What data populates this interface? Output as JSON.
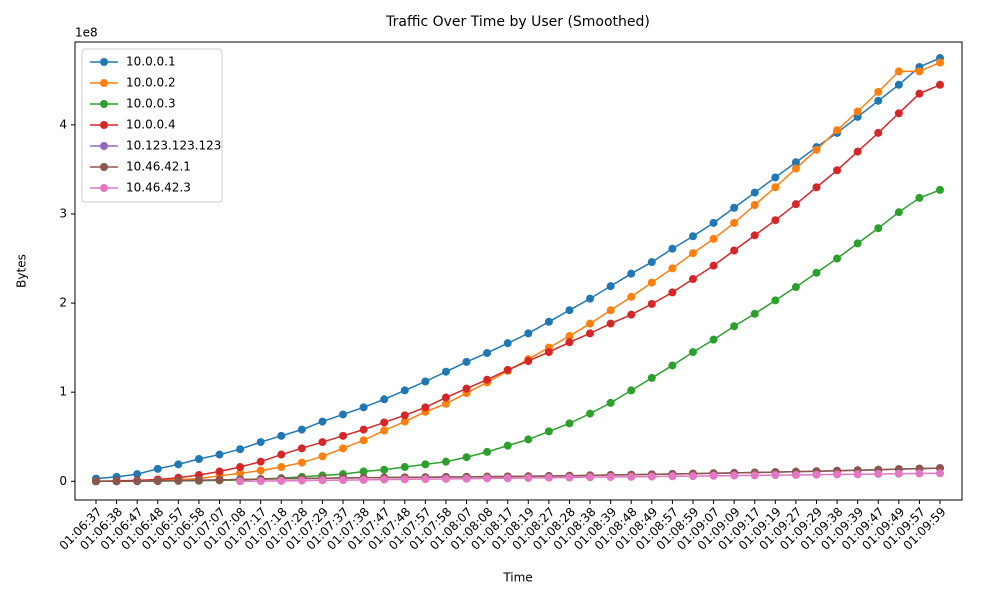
{
  "chart_data": {
    "type": "line",
    "title": "Traffic Over Time by User (Smoothed)",
    "x_label": "Time",
    "y_label": "Bytes",
    "y_offset_label": "1e8",
    "categories": [
      "01:06:37",
      "01:06:38",
      "01:06:47",
      "01:06:48",
      "01:06:57",
      "01:06:58",
      "01:07:07",
      "01:07:08",
      "01:07:17",
      "01:07:18",
      "01:07:28",
      "01:07:29",
      "01:07:37",
      "01:07:38",
      "01:07:47",
      "01:07:48",
      "01:07:57",
      "01:07:58",
      "01:08:07",
      "01:08:08",
      "01:08:17",
      "01:08:19",
      "01:08:27",
      "01:08:28",
      "01:08:38",
      "01:08:39",
      "01:08:48",
      "01:08:49",
      "01:08:57",
      "01:08:59",
      "01:09:07",
      "01:09:09",
      "01:09:17",
      "01:09:19",
      "01:09:27",
      "01:09:29",
      "01:09:38",
      "01:09:39",
      "01:09:47",
      "01:09:49",
      "01:09:57",
      "01:09:59"
    ],
    "ylim": [
      -0.21,
      4.93
    ],
    "yticks": [
      0,
      1,
      2,
      3,
      4
    ],
    "grid": false,
    "legend": "upper left",
    "series": [
      {
        "name": "10.0.0.1",
        "color": "#1f77b4",
        "values": [
          0.03,
          0.05,
          0.08,
          0.14,
          0.19,
          0.25,
          0.3,
          0.36,
          0.44,
          0.51,
          0.58,
          0.67,
          0.75,
          0.83,
          0.92,
          1.02,
          1.12,
          1.23,
          1.34,
          1.44,
          1.55,
          1.66,
          1.79,
          1.92,
          2.05,
          2.19,
          2.33,
          2.46,
          2.61,
          2.75,
          2.9,
          3.07,
          3.24,
          3.41,
          3.58,
          3.75,
          3.91,
          4.09,
          4.27,
          4.45,
          4.65,
          4.75
        ]
      },
      {
        "name": "10.0.0.2",
        "color": "#ff7f0e",
        "values": [
          0,
          0.001,
          0.005,
          0.01,
          0.02,
          0.03,
          0.06,
          0.09,
          0.12,
          0.16,
          0.21,
          0.28,
          0.37,
          0.46,
          0.57,
          0.67,
          0.78,
          0.87,
          0.99,
          1.11,
          1.24,
          1.37,
          1.5,
          1.63,
          1.77,
          1.92,
          2.07,
          2.23,
          2.39,
          2.56,
          2.72,
          2.9,
          3.1,
          3.3,
          3.51,
          3.72,
          3.94,
          4.15,
          4.37,
          4.6,
          4.6,
          4.7
        ]
      },
      {
        "name": "10.0.0.3",
        "color": "#2ca02c",
        "values": [
          0,
          0,
          0.001,
          0.002,
          0.004,
          0.006,
          0.01,
          0.015,
          0.025,
          0.035,
          0.05,
          0.065,
          0.08,
          0.11,
          0.13,
          0.16,
          0.19,
          0.22,
          0.27,
          0.33,
          0.4,
          0.47,
          0.56,
          0.65,
          0.76,
          0.88,
          1.02,
          1.16,
          1.3,
          1.45,
          1.59,
          1.74,
          1.88,
          2.03,
          2.18,
          2.34,
          2.5,
          2.67,
          2.84,
          3.02,
          3.18,
          3.27
        ]
      },
      {
        "name": "10.0.0.4",
        "color": "#d62728",
        "values": [
          0.002,
          0.005,
          0.01,
          0.02,
          0.04,
          0.07,
          0.11,
          0.16,
          0.22,
          0.3,
          0.37,
          0.44,
          0.51,
          0.58,
          0.66,
          0.74,
          0.83,
          0.94,
          1.04,
          1.14,
          1.25,
          1.35,
          1.45,
          1.56,
          1.66,
          1.77,
          1.87,
          1.99,
          2.12,
          2.27,
          2.42,
          2.59,
          2.76,
          2.93,
          3.11,
          3.3,
          3.49,
          3.7,
          3.91,
          4.13,
          4.35,
          4.45
        ]
      },
      {
        "name": "10.123.123.123",
        "color": "#9467bd",
        "values": [
          0,
          0,
          0.002,
          0.004,
          0.008,
          0.012,
          0.016,
          0.02,
          0.024,
          0.028,
          0.031,
          0.034,
          0.037,
          0.04,
          0.042,
          0.044,
          0.046,
          0.048,
          0.05,
          0.052,
          0.054,
          0.056,
          0.059,
          0.062,
          0.066,
          0.07,
          0.074,
          0.078,
          0.082,
          0.086,
          0.09,
          0.094,
          0.098,
          0.103,
          0.108,
          0.113,
          0.118,
          0.124,
          0.13,
          0.136,
          0.142,
          0.148
        ]
      },
      {
        "name": "10.46.42.1",
        "color": "#8c564b",
        "values": [
          0,
          0,
          0.002,
          0.004,
          0.008,
          0.012,
          0.016,
          0.02,
          0.024,
          0.028,
          0.031,
          0.034,
          0.037,
          0.04,
          0.042,
          0.044,
          0.046,
          0.048,
          0.05,
          0.052,
          0.054,
          0.056,
          0.059,
          0.062,
          0.066,
          0.07,
          0.074,
          0.078,
          0.082,
          0.086,
          0.09,
          0.094,
          0.098,
          0.103,
          0.108,
          0.113,
          0.118,
          0.124,
          0.13,
          0.136,
          0.142,
          0.148
        ]
      },
      {
        "name": "10.46.42.3",
        "color": "#e377c2",
        "values": [
          null,
          null,
          null,
          null,
          null,
          null,
          null,
          0,
          0.003,
          0.005,
          0.008,
          0.011,
          0.013,
          0.016,
          0.019,
          0.021,
          0.024,
          0.026,
          0.029,
          0.032,
          0.034,
          0.037,
          0.04,
          0.042,
          0.045,
          0.048,
          0.05,
          0.053,
          0.056,
          0.058,
          0.061,
          0.064,
          0.066,
          0.069,
          0.071,
          0.074,
          0.077,
          0.079,
          0.082,
          0.085,
          0.087,
          0.09
        ]
      }
    ]
  }
}
